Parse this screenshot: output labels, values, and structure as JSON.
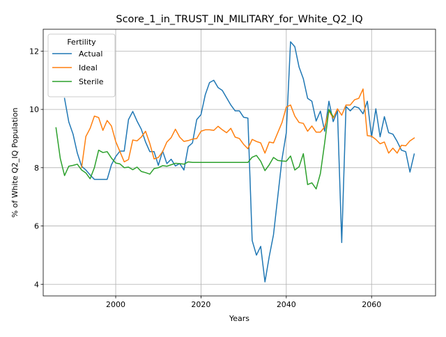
{
  "chart_data": {
    "type": "line",
    "title": "Score_1_in_TRUST_IN_MILITARY_for_White_Q2_IQ",
    "xlabel": "Years",
    "ylabel": "% of White Q2_IQ Population",
    "xlim": [
      1983,
      2075
    ],
    "ylim": [
      3.6,
      12.75
    ],
    "xticks": [
      2000,
      2020,
      2040,
      2060
    ],
    "yticks": [
      4,
      6,
      8,
      10,
      12
    ],
    "grid": true,
    "legend": {
      "title": "Fertility",
      "placement": "top-left"
    },
    "series": [
      {
        "name": "Actual",
        "color": "#1f77b4",
        "x": [
          1988,
          1989,
          1990,
          1991,
          1992,
          1993,
          1994,
          1995,
          1996,
          1997,
          1998,
          1999,
          2000,
          2001,
          2002,
          2003,
          2004,
          2005,
          2006,
          2007,
          2008,
          2009,
          2010,
          2011,
          2012,
          2013,
          2014,
          2015,
          2016,
          2017,
          2018,
          2019,
          2020,
          2021,
          2022,
          2023,
          2024,
          2025,
          2026,
          2027,
          2028,
          2029,
          2030,
          2031,
          2032,
          2033,
          2034,
          2035,
          2036,
          2037,
          2038,
          2039,
          2040,
          2041,
          2042,
          2043,
          2044,
          2045,
          2046,
          2047,
          2048,
          2049,
          2050,
          2051,
          2052,
          2053,
          2054,
          2055,
          2056,
          2057,
          2058,
          2059,
          2060,
          2061,
          2062,
          2063,
          2064,
          2065,
          2066,
          2067,
          2068,
          2069,
          2070
        ],
        "y": [
          10.38,
          9.57,
          9.15,
          8.5,
          8.05,
          7.92,
          7.75,
          7.6,
          7.6,
          7.6,
          7.6,
          8.1,
          8.38,
          8.57,
          8.57,
          9.65,
          9.93,
          9.6,
          9.32,
          8.88,
          8.55,
          8.55,
          8.08,
          8.57,
          8.14,
          8.29,
          8.06,
          8.14,
          7.92,
          8.72,
          8.85,
          9.65,
          9.82,
          10.5,
          10.92,
          11.0,
          10.75,
          10.65,
          10.4,
          10.15,
          9.95,
          9.95,
          9.73,
          9.7,
          5.5,
          5.0,
          5.3,
          4.08,
          4.95,
          5.7,
          7.0,
          8.3,
          9.2,
          12.32,
          12.15,
          11.45,
          11.05,
          10.38,
          10.28,
          9.6,
          9.94,
          9.25,
          10.28,
          9.58,
          9.95,
          5.43,
          10.1,
          9.95,
          10.1,
          10.05,
          9.85,
          10.28,
          9.05,
          10.02,
          9.06,
          9.75,
          9.2,
          9.15,
          8.9,
          8.6,
          8.55,
          7.85,
          8.47
        ]
      },
      {
        "name": "Ideal",
        "color": "#ff7f0e",
        "x": [
          1992,
          1993,
          1994,
          1995,
          1996,
          1997,
          1998,
          1999,
          2000,
          2001,
          2002,
          2003,
          2004,
          2005,
          2006,
          2007,
          2008,
          2009,
          2010,
          2011,
          2012,
          2013,
          2014,
          2015,
          2016,
          2017,
          2018,
          2019,
          2020,
          2021,
          2022,
          2023,
          2024,
          2025,
          2026,
          2027,
          2028,
          2029,
          2030,
          2031,
          2032,
          2033,
          2034,
          2035,
          2036,
          2037,
          2038,
          2039,
          2040,
          2041,
          2042,
          2043,
          2044,
          2045,
          2046,
          2047,
          2048,
          2049,
          2050,
          2051,
          2052,
          2053,
          2054,
          2055,
          2056,
          2057,
          2058,
          2059,
          2060,
          2061,
          2062,
          2063,
          2064,
          2065,
          2066,
          2067,
          2068,
          2069,
          2070
        ],
        "y": [
          8.0,
          9.07,
          9.35,
          9.77,
          9.72,
          9.28,
          9.62,
          9.43,
          8.9,
          8.55,
          8.2,
          8.28,
          8.95,
          8.92,
          9.05,
          9.25,
          8.83,
          8.3,
          8.35,
          8.55,
          8.88,
          9.03,
          9.32,
          9.05,
          8.9,
          8.93,
          8.98,
          9.0,
          9.25,
          9.3,
          9.3,
          9.28,
          9.42,
          9.3,
          9.2,
          9.35,
          9.05,
          9.0,
          8.8,
          8.65,
          8.97,
          8.9,
          8.85,
          8.5,
          8.88,
          8.85,
          9.2,
          9.55,
          10.08,
          10.15,
          9.77,
          9.55,
          9.52,
          9.25,
          9.43,
          9.22,
          9.22,
          9.4,
          9.95,
          9.7,
          10.02,
          9.8,
          10.15,
          10.15,
          10.33,
          10.38,
          10.7,
          9.1,
          9.08,
          8.97,
          8.82,
          8.88,
          8.5,
          8.67,
          8.5,
          8.77,
          8.75,
          8.92,
          9.02
        ]
      },
      {
        "name": "Sterile",
        "color": "#2ca02c",
        "x": [
          1986,
          1987,
          1988,
          1989,
          1990,
          1991,
          1992,
          1993,
          1994,
          1995,
          1996,
          1997,
          1998,
          1999,
          2000,
          2001,
          2002,
          2003,
          2004,
          2005,
          2006,
          2007,
          2008,
          2009,
          2010,
          2011,
          2012,
          2013,
          2014,
          2015,
          2016,
          2017,
          2018,
          2019,
          2020,
          2021,
          2022,
          2023,
          2024,
          2025,
          2026,
          2027,
          2028,
          2029,
          2030,
          2031,
          2032,
          2033,
          2034,
          2035,
          2036,
          2037,
          2038,
          2039,
          2040,
          2041,
          2042,
          2043,
          2044,
          2045,
          2046,
          2047,
          2048,
          2049,
          2050,
          2051
        ],
        "y": [
          9.37,
          8.32,
          7.73,
          8.05,
          8.08,
          8.12,
          7.92,
          7.82,
          7.62,
          8.0,
          8.6,
          8.52,
          8.55,
          8.33,
          8.16,
          8.13,
          8.0,
          8.02,
          7.93,
          8.02,
          7.87,
          7.83,
          7.78,
          7.97,
          8.0,
          8.07,
          8.05,
          8.1,
          8.15,
          8.14,
          8.12,
          8.2,
          8.18,
          8.18,
          8.18,
          8.18,
          8.18,
          8.18,
          8.18,
          8.18,
          8.18,
          8.18,
          8.18,
          8.18,
          8.18,
          8.18,
          8.36,
          8.42,
          8.22,
          7.9,
          8.1,
          8.35,
          8.25,
          8.23,
          8.22,
          8.4,
          7.92,
          8.03,
          8.48,
          7.42,
          7.48,
          7.27,
          7.8,
          8.85,
          10.0,
          9.75
        ]
      }
    ]
  }
}
